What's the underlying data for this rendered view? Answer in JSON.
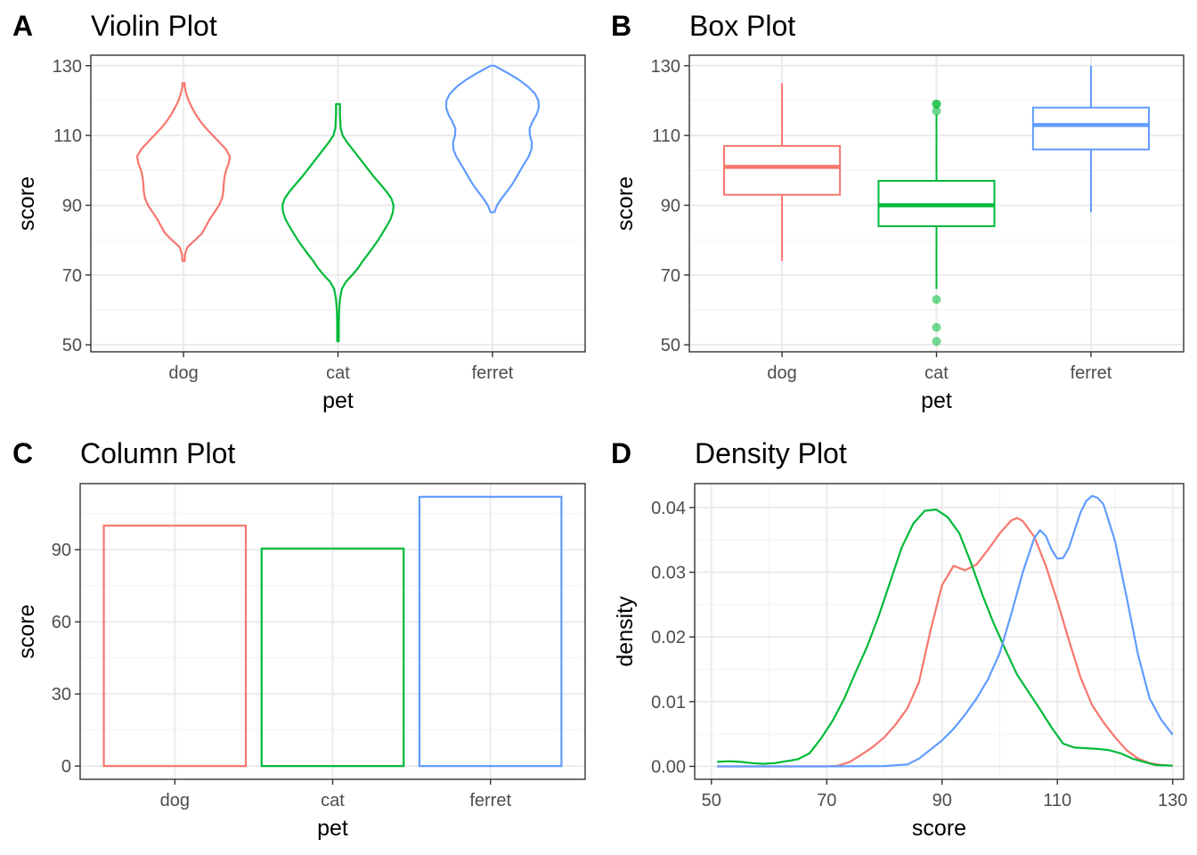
{
  "colors": {
    "dog": "#F8766D",
    "cat": "#00BA38",
    "ferret": "#619CFF"
  },
  "chart_data": [
    {
      "tag": "A",
      "type": "violin",
      "title": "Violin Plot",
      "xlabel": "pet",
      "ylabel": "score",
      "categories": [
        "dog",
        "cat",
        "ferret"
      ],
      "yticks": [
        50,
        70,
        90,
        110,
        130
      ],
      "ylim": [
        48.0,
        133.0
      ],
      "grid": true,
      "series": [
        {
          "name": "dog",
          "min": 74,
          "max": 125,
          "profile": [
            [
              74,
              0.03
            ],
            [
              76,
              0.04
            ],
            [
              78,
              0.1
            ],
            [
              80,
              0.3
            ],
            [
              82,
              0.48
            ],
            [
              84,
              0.58
            ],
            [
              86,
              0.68
            ],
            [
              88,
              0.8
            ],
            [
              90,
              0.92
            ],
            [
              92,
              1.0
            ],
            [
              94,
              1.03
            ],
            [
              96,
              1.04
            ],
            [
              98,
              1.06
            ],
            [
              100,
              1.1
            ],
            [
              102,
              1.17
            ],
            [
              104,
              1.2
            ],
            [
              106,
              1.1
            ],
            [
              108,
              0.93
            ],
            [
              110,
              0.76
            ],
            [
              112,
              0.59
            ],
            [
              114,
              0.44
            ],
            [
              116,
              0.32
            ],
            [
              118,
              0.22
            ],
            [
              120,
              0.13
            ],
            [
              122,
              0.07
            ],
            [
              124,
              0.03
            ],
            [
              125,
              0.03
            ]
          ]
        },
        {
          "name": "cat",
          "min": 51,
          "max": 119,
          "profile": [
            [
              51,
              0.02
            ],
            [
              56,
              0.02
            ],
            [
              60,
              0.03
            ],
            [
              63,
              0.05
            ],
            [
              66,
              0.1
            ],
            [
              68,
              0.2
            ],
            [
              70,
              0.37
            ],
            [
              72,
              0.52
            ],
            [
              74,
              0.64
            ],
            [
              76,
              0.78
            ],
            [
              78,
              0.91
            ],
            [
              80,
              1.04
            ],
            [
              82,
              1.15
            ],
            [
              84,
              1.26
            ],
            [
              86,
              1.36
            ],
            [
              88,
              1.42
            ],
            [
              90,
              1.44
            ],
            [
              92,
              1.38
            ],
            [
              94,
              1.25
            ],
            [
              96,
              1.1
            ],
            [
              98,
              0.94
            ],
            [
              100,
              0.8
            ],
            [
              102,
              0.66
            ],
            [
              104,
              0.52
            ],
            [
              106,
              0.38
            ],
            [
              108,
              0.24
            ],
            [
              110,
              0.12
            ],
            [
              112,
              0.07
            ],
            [
              114,
              0.06
            ],
            [
              116,
              0.05
            ],
            [
              118,
              0.05
            ],
            [
              119,
              0.05
            ]
          ]
        },
        {
          "name": "ferret",
          "min": 88,
          "max": 130,
          "profile": [
            [
              88,
              0.05
            ],
            [
              90,
              0.12
            ],
            [
              92,
              0.24
            ],
            [
              94,
              0.38
            ],
            [
              96,
              0.51
            ],
            [
              98,
              0.62
            ],
            [
              100,
              0.72
            ],
            [
              102,
              0.83
            ],
            [
              104,
              0.94
            ],
            [
              106,
              1.01
            ],
            [
              108,
              1.02
            ],
            [
              110,
              0.97
            ],
            [
              112,
              0.96
            ],
            [
              114,
              1.04
            ],
            [
              116,
              1.14
            ],
            [
              118,
              1.2
            ],
            [
              120,
              1.19
            ],
            [
              122,
              1.1
            ],
            [
              124,
              0.92
            ],
            [
              126,
              0.68
            ],
            [
              128,
              0.38
            ],
            [
              130,
              0.05
            ]
          ]
        }
      ]
    },
    {
      "tag": "B",
      "type": "box",
      "title": "Box Plot",
      "xlabel": "pet",
      "ylabel": "score",
      "categories": [
        "dog",
        "cat",
        "ferret"
      ],
      "yticks": [
        50,
        70,
        90,
        110,
        130
      ],
      "ylim": [
        48.0,
        133.0
      ],
      "grid": true,
      "series": [
        {
          "name": "dog",
          "q1": 93,
          "median": 101,
          "q3": 107,
          "lower_whisker": 74,
          "upper_whisker": 125,
          "outliers": []
        },
        {
          "name": "cat",
          "q1": 84,
          "median": 90,
          "q3": 97,
          "lower_whisker": 66,
          "upper_whisker": 116,
          "outliers": [
            51,
            55,
            63,
            117,
            119,
            119
          ]
        },
        {
          "name": "ferret",
          "q1": 106,
          "median": 113,
          "q3": 118,
          "lower_whisker": 88,
          "upper_whisker": 130,
          "outliers": []
        }
      ]
    },
    {
      "tag": "C",
      "type": "bar",
      "title": "Column Plot",
      "xlabel": "pet",
      "ylabel": "score",
      "categories": [
        "dog",
        "cat",
        "ferret"
      ],
      "values": [
        100,
        90.5,
        112
      ],
      "yticks": [
        0,
        30,
        60,
        90
      ],
      "ylim": [
        -5.5,
        117.5
      ],
      "grid": true
    },
    {
      "tag": "D",
      "type": "line",
      "title": "Density Plot",
      "xlabel": "score",
      "ylabel": "density",
      "xticks": [
        50,
        70,
        90,
        110,
        130
      ],
      "yticks": [
        0.0,
        0.01,
        0.02,
        0.03,
        0.04
      ],
      "ytick_labels": [
        "0.00",
        "0.01",
        "0.02",
        "0.03",
        "0.04"
      ],
      "xlim": [
        47.1,
        131.9
      ],
      "ylim": [
        -0.002,
        0.0437
      ],
      "grid": true,
      "series": [
        {
          "name": "dog",
          "x": [
            51,
            60,
            65,
            68,
            70,
            72,
            74,
            76,
            78,
            80,
            82,
            84,
            86,
            88,
            90,
            92,
            94,
            96,
            98,
            100,
            102,
            103,
            104,
            106,
            108,
            110,
            112,
            114,
            116,
            118,
            120,
            122,
            124,
            126,
            128,
            130
          ],
          "y": [
            0,
            0,
            0,
            0,
            0,
            0.0001,
            0.0007,
            0.0018,
            0.003,
            0.0045,
            0.0065,
            0.009,
            0.013,
            0.021,
            0.028,
            0.031,
            0.0303,
            0.0312,
            0.0335,
            0.036,
            0.038,
            0.0384,
            0.0379,
            0.0355,
            0.031,
            0.0255,
            0.0195,
            0.0138,
            0.0095,
            0.0068,
            0.0045,
            0.0025,
            0.0012,
            0.0005,
            0.0002,
            0.0001
          ]
        },
        {
          "name": "cat",
          "x": [
            51,
            53,
            55,
            57,
            59,
            61,
            63,
            65,
            67,
            69,
            71,
            73,
            75,
            77,
            79,
            81,
            83,
            85,
            87,
            89,
            91,
            93,
            95,
            97,
            99,
            101,
            103,
            105,
            107,
            109,
            111,
            113,
            115,
            117,
            119,
            121,
            123,
            125,
            127,
            130
          ],
          "y": [
            0.0007,
            0.0008,
            0.0007,
            0.0005,
            0.0004,
            0.0005,
            0.0008,
            0.0011,
            0.002,
            0.0043,
            0.007,
            0.0104,
            0.0145,
            0.0185,
            0.0232,
            0.0285,
            0.0338,
            0.0375,
            0.0395,
            0.0397,
            0.0385,
            0.036,
            0.0315,
            0.0265,
            0.022,
            0.018,
            0.0142,
            0.0115,
            0.0088,
            0.006,
            0.0035,
            0.0029,
            0.0028,
            0.0027,
            0.0025,
            0.002,
            0.0012,
            0.0007,
            0.0002,
            0.0001
          ]
        },
        {
          "name": "ferret",
          "x": [
            51,
            70,
            80,
            84,
            86,
            88,
            90,
            92,
            94,
            96,
            98,
            100,
            102,
            104,
            106,
            107,
            108,
            109,
            110,
            111,
            112,
            113,
            114,
            115,
            116,
            117,
            118,
            120,
            122,
            124,
            126,
            128,
            130
          ],
          "y": [
            0,
            0,
            5e-05,
            0.0003,
            0.0012,
            0.0026,
            0.004,
            0.0058,
            0.008,
            0.0105,
            0.0135,
            0.0175,
            0.0235,
            0.03,
            0.0353,
            0.0365,
            0.0356,
            0.0335,
            0.0321,
            0.0322,
            0.0338,
            0.0365,
            0.0392,
            0.041,
            0.0418,
            0.0415,
            0.0405,
            0.0348,
            0.0262,
            0.0172,
            0.0105,
            0.0072,
            0.0049
          ]
        }
      ]
    }
  ]
}
